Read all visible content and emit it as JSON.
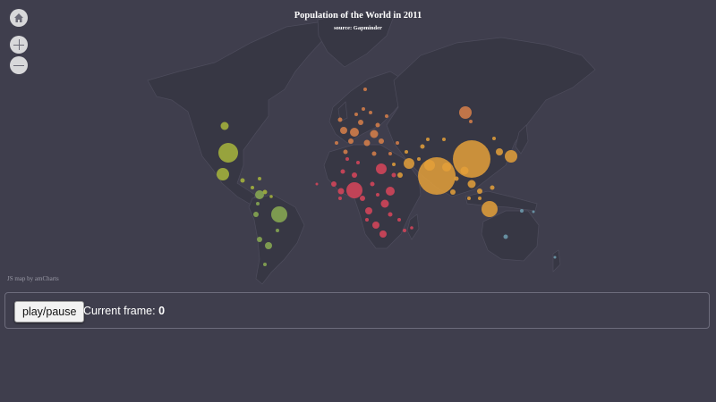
{
  "map": {
    "title": "Population of the World in 2011",
    "subtitle": "source: Gapminder",
    "credit": "JS map by amCharts",
    "colors": {
      "background": "#3f3e4d",
      "land": "#373744",
      "border": "#4d4c5c",
      "americas": "#a8b63c",
      "south_america": "#8aab52",
      "europe": "#d8804a",
      "africa": "#d9455a",
      "asia": "#e4a03a",
      "oceania": "#6f9eb0"
    },
    "zoom_controls": {
      "home_icon": "home-icon",
      "zoom_in_icon": "plus-icon",
      "zoom_out_icon": "minus-icon"
    }
  },
  "controls": {
    "play_label": "play/pause",
    "frame_label": "Current frame:",
    "frame_value": "0"
  }
}
